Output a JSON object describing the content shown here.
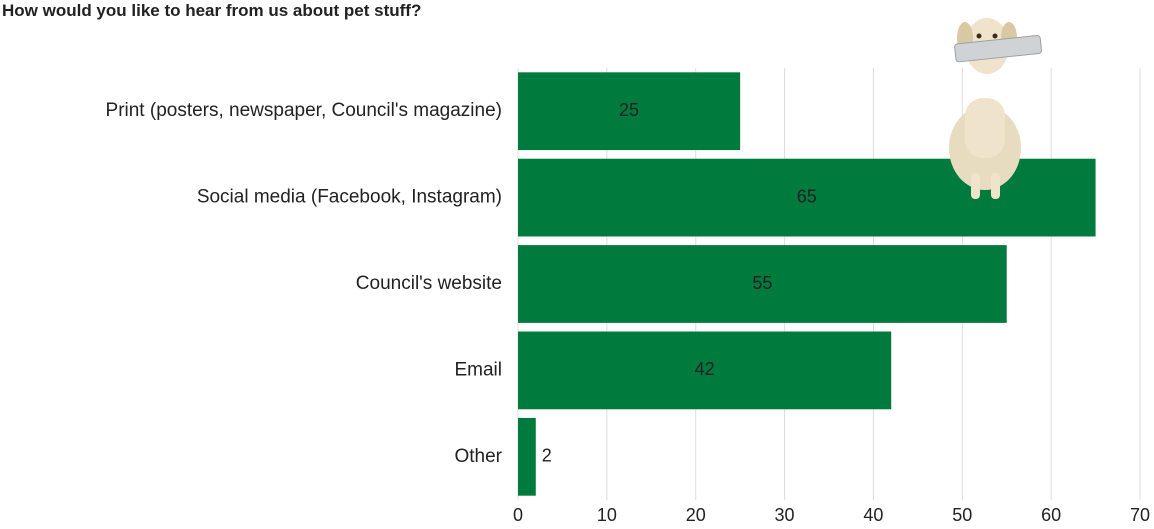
{
  "chart_data": {
    "type": "bar",
    "orientation": "horizontal",
    "title": "How would you like to hear from us about pet stuff?",
    "categories": [
      "Print (posters, newspaper, Council's magazine)",
      "Social media (Facebook, Instagram)",
      "Council's website",
      "Email",
      "Other"
    ],
    "values": [
      25,
      65,
      55,
      42,
      2
    ],
    "color": "#007a3d",
    "xlim": [
      0,
      70
    ],
    "xticks": [
      0,
      10,
      20,
      30,
      40,
      50,
      60,
      70
    ],
    "grid": true
  }
}
